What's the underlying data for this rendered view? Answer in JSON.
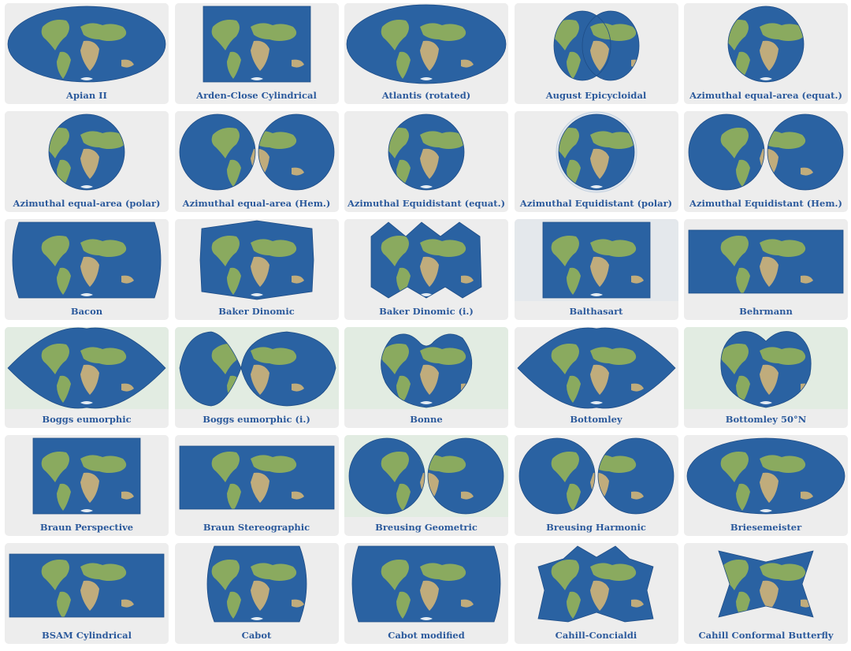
{
  "colors": {
    "ocean": "#2a62a2",
    "ocean_dark": "#1e4d87",
    "land": "#8fae5c",
    "desert": "#c8b07a",
    "ice": "#eef3f8",
    "card_bg": "#ededed",
    "label": "#2c5a9c"
  },
  "projections": [
    {
      "name": "Apian II",
      "shape": "ellipse",
      "bg": "#ededed"
    },
    {
      "name": "Arden-Close Cylindrical",
      "shape": "rect-tall",
      "bg": "#ededed"
    },
    {
      "name": "Atlantis (rotated)",
      "shape": "ellipse-wide",
      "bg": "#ededed"
    },
    {
      "name": "August Epicycloidal",
      "shape": "double-circle-lobed",
      "bg": "#ededed"
    },
    {
      "name": "Azimuthal equal-area (equat.)",
      "shape": "circle-small",
      "bg": "#ededed"
    },
    {
      "name": "Azimuthal equal-area (polar)",
      "shape": "circle",
      "bg": "#ededed"
    },
    {
      "name": "Azimuthal equal-area (Hem.)",
      "shape": "two-circles",
      "bg": "#ededed"
    },
    {
      "name": "Azimuthal Equidistant (equat.)",
      "shape": "circle",
      "bg": "#ededed"
    },
    {
      "name": "Azimuthal Equidistant (polar)",
      "shape": "circle-ring",
      "bg": "#ededed"
    },
    {
      "name": "Azimuthal Equidistant (Hem.)",
      "shape": "two-circles",
      "bg": "#ededed"
    },
    {
      "name": "Bacon",
      "shape": "rounded-rect",
      "bg": "#ededed"
    },
    {
      "name": "Baker Dinomic",
      "shape": "hexagon",
      "bg": "#ededed"
    },
    {
      "name": "Baker Dinomic (i.)",
      "shape": "interrupted",
      "bg": "#ededed"
    },
    {
      "name": "Balthasart",
      "shape": "rect-tall",
      "bg": "#e4e8ec"
    },
    {
      "name": "Behrmann",
      "shape": "rect-wide",
      "bg": "#ededed"
    },
    {
      "name": "Boggs eumorphic",
      "shape": "lens",
      "bg": "#e2ece2"
    },
    {
      "name": "Boggs eumorphic (i.)",
      "shape": "interrupted-lens",
      "bg": "#e2ece2"
    },
    {
      "name": "Bonne",
      "shape": "heart",
      "bg": "#e2ece2"
    },
    {
      "name": "Bottomley",
      "shape": "lens",
      "bg": "#ededed"
    },
    {
      "name": "Bottomley 50°N",
      "shape": "heart-round",
      "bg": "#e2ece2"
    },
    {
      "name": "Braun Perspective",
      "shape": "rect-tall",
      "bg": "#ededed"
    },
    {
      "name": "Braun Stereographic",
      "shape": "rect-wide",
      "bg": "#ededed"
    },
    {
      "name": "Breusing Geometric",
      "shape": "two-circles",
      "bg": "#e2ece2"
    },
    {
      "name": "Breusing Harmonic",
      "shape": "two-circles",
      "bg": "#ededed"
    },
    {
      "name": "Briesemeister",
      "shape": "ellipse",
      "bg": "#ededed"
    },
    {
      "name": "BSAM Cylindrical",
      "shape": "rect-wide",
      "bg": "#ededed"
    },
    {
      "name": "Cabot",
      "shape": "rounded-rect-small",
      "bg": "#ededed"
    },
    {
      "name": "Cabot modified",
      "shape": "rounded-rect",
      "bg": "#ededed"
    },
    {
      "name": "Cahill-Concialdi",
      "shape": "butterfly",
      "bg": "#ededed"
    },
    {
      "name": "Cahill Conformal Butterfly",
      "shape": "butterfly-sym",
      "bg": "#ededed"
    }
  ]
}
